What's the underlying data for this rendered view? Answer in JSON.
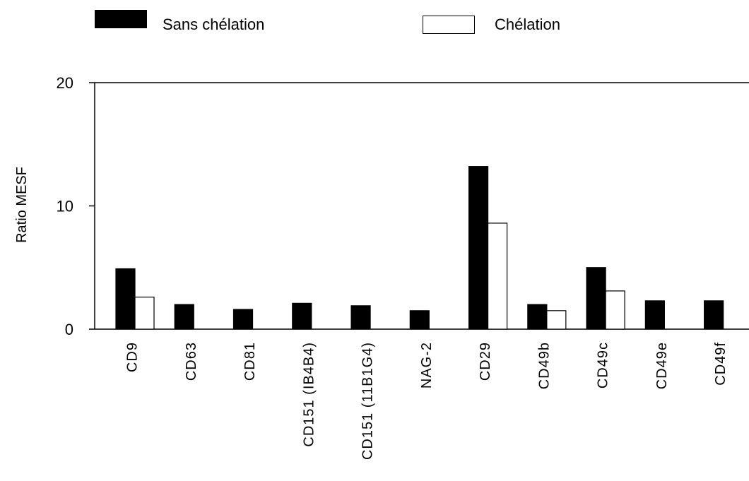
{
  "chart_data": {
    "type": "bar",
    "categories": [
      "CD9",
      "CD63",
      "CD81",
      "CD151 (IB4B4)",
      "CD151 (11B1G4)",
      "NAG-2",
      "CD29",
      "CD49b",
      "CD49c",
      "CD49e",
      "CD49f"
    ],
    "series": [
      {
        "name": "Sans chélation",
        "color": "#000000",
        "values": [
          4.9,
          2.0,
          1.6,
          2.1,
          1.9,
          1.5,
          13.2,
          2.0,
          5.0,
          2.3,
          2.3
        ]
      },
      {
        "name": "Chélation",
        "color": "#ffffff",
        "values": [
          2.6,
          null,
          null,
          null,
          null,
          null,
          8.6,
          1.5,
          3.1,
          null,
          null
        ]
      }
    ],
    "title": "",
    "xlabel": "",
    "ylabel": "Ratio MESF",
    "ylim": [
      0,
      20
    ],
    "yticks": [
      "0",
      "10",
      "20"
    ],
    "grid": false,
    "legend_position": "top"
  }
}
